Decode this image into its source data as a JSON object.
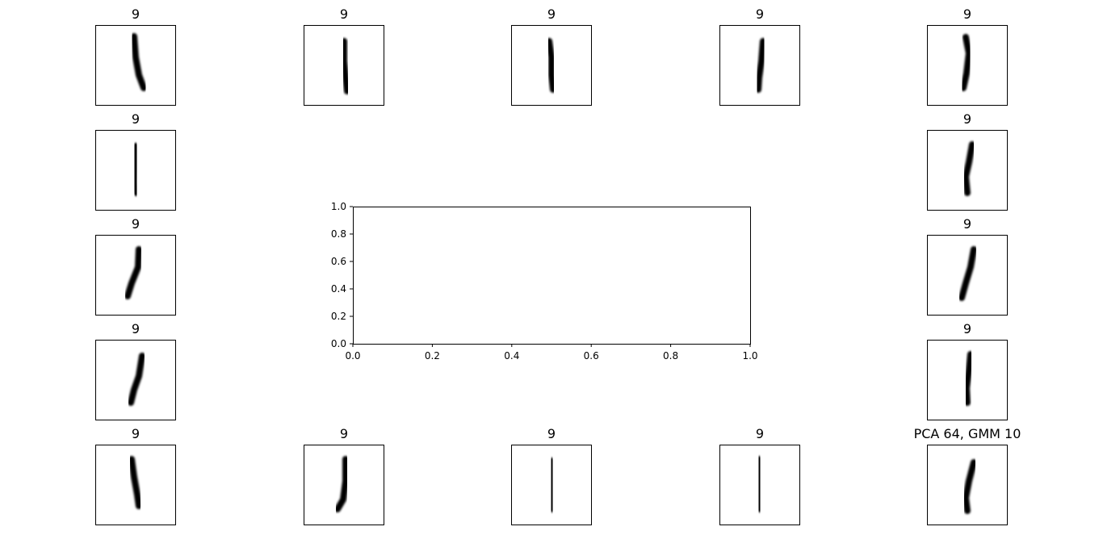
{
  "chart_data": {
    "type": "other",
    "panels": [
      {
        "title": "9",
        "strokes": [
          [
            0.48,
            0.14
          ],
          [
            0.5,
            0.4
          ],
          [
            0.54,
            0.62
          ],
          [
            0.6,
            0.78
          ]
        ]
      },
      {
        "title": "9",
        "strokes": [
          [
            0.5,
            0.2
          ],
          [
            0.5,
            0.45
          ],
          [
            0.52,
            0.65
          ],
          [
            0.54,
            0.82
          ]
        ]
      },
      {
        "title": "9",
        "strokes": [
          [
            0.47,
            0.2
          ],
          [
            0.5,
            0.4
          ],
          [
            0.5,
            0.62
          ],
          [
            0.52,
            0.8
          ]
        ]
      },
      {
        "title": "9",
        "strokes": [
          [
            0.54,
            0.2
          ],
          [
            0.52,
            0.45
          ],
          [
            0.49,
            0.65
          ],
          [
            0.48,
            0.8
          ]
        ]
      },
      {
        "title": "9",
        "strokes": [
          [
            0.48,
            0.15
          ],
          [
            0.52,
            0.35
          ],
          [
            0.49,
            0.6
          ],
          [
            0.45,
            0.78
          ]
        ]
      },
      {
        "title": "9",
        "strokes": [
          [
            0.5,
            0.2
          ],
          [
            0.5,
            0.45
          ],
          [
            0.49,
            0.65
          ],
          [
            0.51,
            0.78
          ]
        ]
      },
      {
        "title": "9",
        "strokes": [
          [
            0.56,
            0.18
          ],
          [
            0.52,
            0.4
          ],
          [
            0.48,
            0.58
          ],
          [
            0.5,
            0.78
          ]
        ]
      },
      {
        "title": "9",
        "strokes": [
          [
            0.54,
            0.18
          ],
          [
            0.53,
            0.4
          ],
          [
            0.45,
            0.6
          ],
          [
            0.4,
            0.76
          ]
        ]
      },
      {
        "title": "9",
        "strokes": [
          [
            0.58,
            0.18
          ],
          [
            0.54,
            0.4
          ],
          [
            0.48,
            0.6
          ],
          [
            0.43,
            0.78
          ]
        ]
      },
      {
        "title": "9",
        "strokes": [
          [
            0.58,
            0.2
          ],
          [
            0.54,
            0.45
          ],
          [
            0.48,
            0.62
          ],
          [
            0.44,
            0.78
          ]
        ]
      },
      {
        "title": "9",
        "strokes": [
          [
            0.54,
            0.18
          ],
          [
            0.52,
            0.38
          ],
          [
            0.49,
            0.6
          ],
          [
            0.5,
            0.78
          ]
        ]
      },
      {
        "title": "9",
        "strokes": [
          [
            0.45,
            0.18
          ],
          [
            0.48,
            0.4
          ],
          [
            0.52,
            0.62
          ],
          [
            0.54,
            0.76
          ]
        ]
      },
      {
        "title": "9",
        "strokes": [
          [
            0.52,
            0.18
          ],
          [
            0.52,
            0.45
          ],
          [
            0.49,
            0.68
          ],
          [
            0.42,
            0.8
          ]
        ]
      },
      {
        "title": "9",
        "strokes": [
          [
            0.5,
            0.2
          ],
          [
            0.5,
            0.45
          ],
          [
            0.5,
            0.62
          ],
          [
            0.51,
            0.8
          ]
        ]
      },
      {
        "title": "9",
        "strokes": [
          [
            0.49,
            0.18
          ],
          [
            0.5,
            0.4
          ],
          [
            0.5,
            0.62
          ],
          [
            0.5,
            0.8
          ]
        ]
      },
      {
        "title": "PCA 64, GMM 10",
        "strokes": [
          [
            0.58,
            0.22
          ],
          [
            0.52,
            0.45
          ],
          [
            0.48,
            0.66
          ],
          [
            0.5,
            0.82
          ]
        ]
      }
    ],
    "center_axes": {
      "xlim": [
        0.0,
        1.0
      ],
      "ylim": [
        0.0,
        1.0
      ],
      "xticks": [
        "0.0",
        "0.2",
        "0.4",
        "0.6",
        "0.8",
        "1.0"
      ],
      "yticks": [
        "0.0",
        "0.2",
        "0.4",
        "0.6",
        "0.8",
        "1.0"
      ]
    }
  }
}
